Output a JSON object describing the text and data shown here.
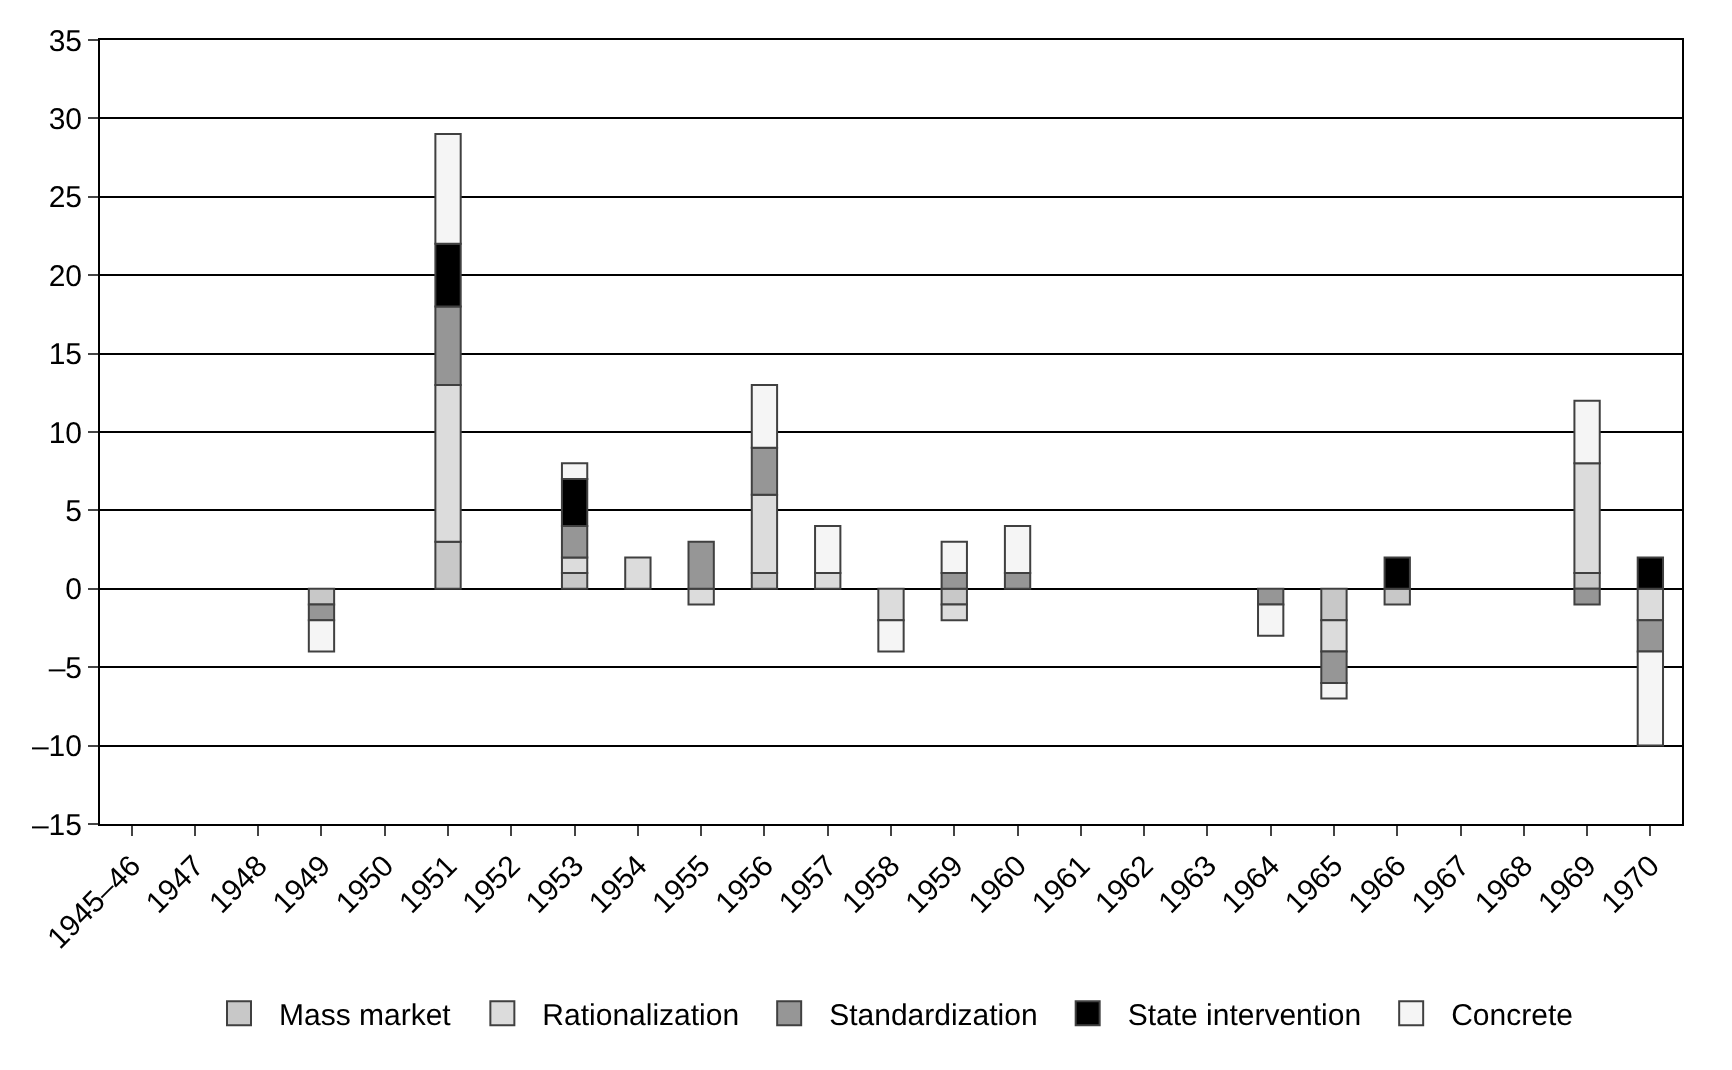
{
  "chart_data": {
    "type": "bar",
    "stacked": true,
    "categories": [
      "1945–46",
      "1947",
      "1948",
      "1949",
      "1950",
      "1951",
      "1952",
      "1953",
      "1954",
      "1955",
      "1956",
      "1957",
      "1958",
      "1959",
      "1960",
      "1961",
      "1962",
      "1963",
      "1964",
      "1965",
      "1966",
      "1967",
      "1968",
      "1969",
      "1970"
    ],
    "series": [
      {
        "name": "Mass market",
        "color": "#c8c8c8",
        "values": [
          null,
          null,
          null,
          -1,
          null,
          3,
          null,
          1,
          null,
          null,
          1,
          null,
          null,
          -1,
          null,
          null,
          null,
          null,
          null,
          -2,
          -1,
          null,
          null,
          1,
          null
        ]
      },
      {
        "name": "Rationalization",
        "color": "#dcdcdc",
        "values": [
          null,
          null,
          null,
          null,
          null,
          10,
          null,
          1,
          2,
          -1,
          5,
          1,
          -2,
          -1,
          null,
          null,
          null,
          null,
          null,
          -2,
          null,
          null,
          null,
          7,
          -2
        ]
      },
      {
        "name": "Standardization",
        "color": "#969696",
        "values": [
          null,
          null,
          null,
          -1,
          null,
          5,
          null,
          2,
          null,
          3,
          3,
          null,
          null,
          1,
          1,
          null,
          null,
          null,
          -1,
          -2,
          null,
          null,
          null,
          -1,
          -2
        ]
      },
      {
        "name": "State intervention",
        "color": "#000000",
        "values": [
          null,
          null,
          null,
          null,
          null,
          4,
          null,
          3,
          null,
          null,
          null,
          null,
          null,
          null,
          null,
          null,
          null,
          null,
          null,
          null,
          2,
          null,
          null,
          null,
          2
        ]
      },
      {
        "name": "Concrete",
        "color": "#f5f5f5",
        "values": [
          null,
          null,
          null,
          -2,
          null,
          7,
          null,
          1,
          null,
          null,
          4,
          3,
          -2,
          2,
          3,
          null,
          null,
          null,
          -2,
          -1,
          null,
          null,
          null,
          4,
          -6
        ]
      }
    ],
    "ylim": [
      -15,
      35
    ],
    "yticks": [
      {
        "value": -15,
        "label": "–15"
      },
      {
        "value": -10,
        "label": "–10"
      },
      {
        "value": -5,
        "label": "–5"
      },
      0,
      5,
      10,
      15,
      20,
      25,
      30,
      35
    ],
    "grid": "y",
    "legend": "bottom"
  }
}
